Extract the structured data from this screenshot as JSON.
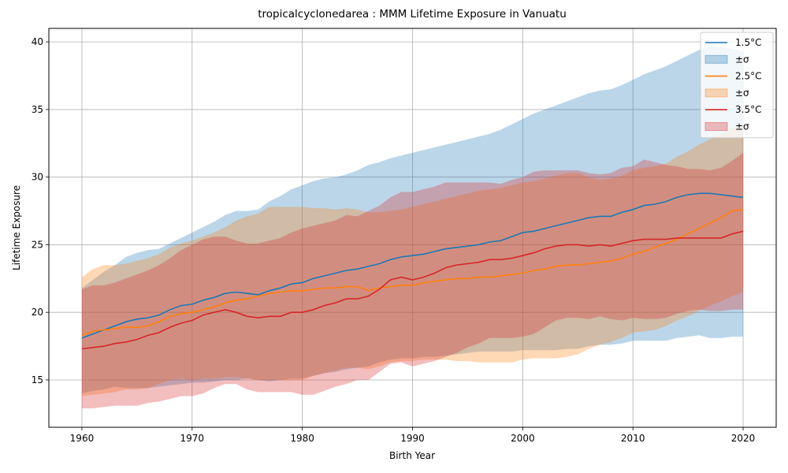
{
  "chart_data": {
    "type": "line",
    "title": "tropicalcyclonedarea : MMM Lifetime Exposure in Vanuatu",
    "xlabel": "Birth Year",
    "ylabel": "Lifetime Exposure",
    "xlim": [
      1957,
      2023
    ],
    "ylim": [
      11.5,
      41
    ],
    "xticks": [
      1960,
      1970,
      1980,
      1990,
      2000,
      2010,
      2020
    ],
    "yticks": [
      15,
      20,
      25,
      30,
      35,
      40
    ],
    "grid": true,
    "legend_placement": "top-right",
    "x": [
      1960,
      1961,
      1962,
      1963,
      1964,
      1965,
      1966,
      1967,
      1968,
      1969,
      1970,
      1971,
      1972,
      1973,
      1974,
      1975,
      1976,
      1977,
      1978,
      1979,
      1980,
      1981,
      1982,
      1983,
      1984,
      1985,
      1986,
      1987,
      1988,
      1989,
      1990,
      1991,
      1992,
      1993,
      1994,
      1995,
      1996,
      1997,
      1998,
      1999,
      2000,
      2001,
      2002,
      2003,
      2004,
      2005,
      2006,
      2007,
      2008,
      2009,
      2010,
      2011,
      2012,
      2013,
      2014,
      2015,
      2016,
      2017,
      2018,
      2019,
      2020
    ],
    "series": [
      {
        "name": "1.5°C",
        "band_label": "±σ",
        "color": "#1f77b4",
        "mean": [
          18.1,
          18.4,
          18.7,
          19.0,
          19.3,
          19.5,
          19.6,
          19.8,
          20.2,
          20.5,
          20.6,
          20.9,
          21.1,
          21.4,
          21.5,
          21.4,
          21.3,
          21.6,
          21.8,
          22.1,
          22.2,
          22.5,
          22.7,
          22.9,
          23.1,
          23.2,
          23.4,
          23.6,
          23.9,
          24.1,
          24.2,
          24.3,
          24.5,
          24.7,
          24.8,
          24.9,
          25.0,
          25.2,
          25.3,
          25.6,
          25.9,
          26.0,
          26.2,
          26.4,
          26.6,
          26.8,
          27.0,
          27.1,
          27.1,
          27.4,
          27.6,
          27.9,
          28.0,
          28.2,
          28.5,
          28.7,
          28.8,
          28.8,
          28.7,
          28.6,
          28.5
        ],
        "lower": [
          14.0,
          14.2,
          14.3,
          14.5,
          14.4,
          14.4,
          14.4,
          14.5,
          14.6,
          14.7,
          14.8,
          14.8,
          14.9,
          15.0,
          15.0,
          15.1,
          15.0,
          14.9,
          15.0,
          15.1,
          15.1,
          15.3,
          15.5,
          15.6,
          15.8,
          15.9,
          16.0,
          16.3,
          16.5,
          16.6,
          16.6,
          16.7,
          16.7,
          16.8,
          16.9,
          17.0,
          17.1,
          17.1,
          17.1,
          17.1,
          17.2,
          17.2,
          17.2,
          17.2,
          17.3,
          17.3,
          17.5,
          17.6,
          17.6,
          17.7,
          17.9,
          17.9,
          17.9,
          17.9,
          18.1,
          18.2,
          18.3,
          18.1,
          18.1,
          18.2,
          18.2
        ],
        "upper": [
          21.8,
          22.4,
          23.0,
          23.5,
          24.1,
          24.4,
          24.6,
          24.7,
          25.1,
          25.5,
          25.9,
          26.3,
          26.7,
          27.2,
          27.5,
          27.5,
          27.6,
          28.2,
          28.6,
          29.1,
          29.4,
          29.7,
          29.9,
          30.0,
          30.2,
          30.5,
          30.9,
          31.1,
          31.4,
          31.6,
          31.8,
          32.0,
          32.2,
          32.4,
          32.6,
          32.8,
          33.0,
          33.2,
          33.5,
          33.9,
          34.3,
          34.7,
          35.0,
          35.3,
          35.6,
          35.9,
          36.2,
          36.4,
          36.5,
          36.8,
          37.2,
          37.6,
          37.9,
          38.2,
          38.6,
          39.0,
          39.4,
          39.7,
          39.6,
          39.5,
          39.3
        ]
      },
      {
        "name": "2.5°C",
        "band_label": "±σ",
        "color": "#ff7f0e",
        "mean": [
          18.3,
          18.6,
          18.7,
          18.8,
          18.9,
          18.9,
          19.0,
          19.3,
          19.7,
          19.9,
          20.0,
          20.2,
          20.4,
          20.7,
          20.9,
          21.0,
          21.2,
          21.4,
          21.5,
          21.6,
          21.6,
          21.7,
          21.8,
          21.8,
          21.9,
          21.9,
          21.6,
          21.8,
          21.9,
          22.0,
          22.0,
          22.2,
          22.3,
          22.4,
          22.5,
          22.5,
          22.6,
          22.6,
          22.7,
          22.8,
          22.9,
          23.1,
          23.2,
          23.4,
          23.5,
          23.5,
          23.6,
          23.7,
          23.8,
          24.0,
          24.3,
          24.5,
          24.8,
          25.1,
          25.4,
          25.8,
          26.2,
          26.6,
          27.0,
          27.5,
          27.6
        ],
        "lower": [
          13.8,
          13.9,
          14.0,
          14.1,
          14.3,
          14.3,
          14.4,
          14.7,
          15.0,
          15.1,
          15.0,
          15.1,
          15.1,
          15.2,
          15.2,
          15.1,
          15.0,
          15.0,
          15.0,
          15.0,
          15.0,
          15.3,
          15.5,
          15.7,
          15.9,
          15.9,
          15.8,
          16.0,
          16.3,
          16.4,
          16.4,
          16.5,
          16.5,
          16.5,
          16.4,
          16.4,
          16.3,
          16.3,
          16.3,
          16.3,
          16.5,
          16.6,
          16.6,
          16.6,
          16.7,
          16.9,
          17.3,
          17.6,
          17.8,
          18.1,
          18.5,
          18.6,
          18.7,
          19.0,
          19.4,
          19.7,
          20.1,
          20.5,
          20.8,
          21.2,
          21.5
        ],
        "upper": [
          22.6,
          23.2,
          23.5,
          23.5,
          23.6,
          23.8,
          24.0,
          24.3,
          24.8,
          25.1,
          25.3,
          25.6,
          25.9,
          26.3,
          26.8,
          27.1,
          27.3,
          27.8,
          27.8,
          27.8,
          27.8,
          27.7,
          27.7,
          27.6,
          27.7,
          27.6,
          27.4,
          27.4,
          27.5,
          27.6,
          27.8,
          28.0,
          28.2,
          28.4,
          28.6,
          28.8,
          29.0,
          29.1,
          29.2,
          29.4,
          29.6,
          29.7,
          29.9,
          30.1,
          30.3,
          30.3,
          30.0,
          29.8,
          29.9,
          30.1,
          30.5,
          30.7,
          30.8,
          31.0,
          31.5,
          31.9,
          32.4,
          32.8,
          33.2,
          33.6,
          33.8
        ]
      },
      {
        "name": "3.5°C",
        "band_label": "±σ",
        "color": "#d62728",
        "mean": [
          17.3,
          17.4,
          17.5,
          17.7,
          17.8,
          18.0,
          18.3,
          18.5,
          18.9,
          19.2,
          19.4,
          19.8,
          20.0,
          20.2,
          20.0,
          19.7,
          19.6,
          19.7,
          19.7,
          20.0,
          20.0,
          20.2,
          20.5,
          20.7,
          21.0,
          21.0,
          21.2,
          21.7,
          22.4,
          22.6,
          22.4,
          22.6,
          22.9,
          23.3,
          23.5,
          23.6,
          23.7,
          23.9,
          23.9,
          24.0,
          24.2,
          24.4,
          24.7,
          24.9,
          25.0,
          25.0,
          24.9,
          25.0,
          24.9,
          25.1,
          25.3,
          25.4,
          25.4,
          25.4,
          25.5,
          25.5,
          25.5,
          25.5,
          25.5,
          25.8,
          26.0
        ],
        "lower": [
          12.9,
          12.9,
          13.0,
          13.1,
          13.1,
          13.1,
          13.3,
          13.4,
          13.6,
          13.8,
          13.8,
          14.0,
          14.4,
          14.7,
          14.7,
          14.3,
          14.1,
          14.1,
          14.1,
          14.1,
          13.9,
          13.9,
          14.2,
          14.5,
          14.7,
          15.0,
          15.0,
          15.6,
          16.2,
          16.3,
          16.0,
          16.2,
          16.4,
          16.7,
          17.0,
          17.4,
          17.7,
          18.1,
          18.1,
          18.1,
          18.2,
          18.4,
          18.9,
          19.4,
          19.6,
          19.6,
          19.5,
          19.7,
          19.5,
          19.4,
          19.6,
          19.5,
          19.5,
          19.6,
          19.9,
          20.1,
          20.2,
          20.1,
          20.1,
          20.2,
          20.2
        ],
        "upper": [
          21.7,
          22.0,
          22.0,
          22.2,
          22.5,
          22.8,
          23.1,
          23.5,
          24.0,
          24.6,
          25.0,
          25.4,
          25.6,
          25.6,
          25.3,
          25.1,
          25.1,
          25.3,
          25.5,
          25.9,
          26.2,
          26.4,
          26.6,
          26.8,
          27.2,
          27.1,
          27.5,
          27.9,
          28.5,
          28.9,
          28.9,
          29.1,
          29.3,
          29.6,
          29.6,
          29.6,
          29.6,
          29.6,
          29.5,
          29.8,
          30.0,
          30.4,
          30.5,
          30.5,
          30.5,
          30.5,
          30.3,
          30.2,
          30.3,
          30.7,
          30.8,
          31.3,
          31.1,
          30.9,
          30.8,
          30.6,
          30.6,
          30.5,
          30.7,
          31.2,
          31.8
        ]
      }
    ]
  }
}
